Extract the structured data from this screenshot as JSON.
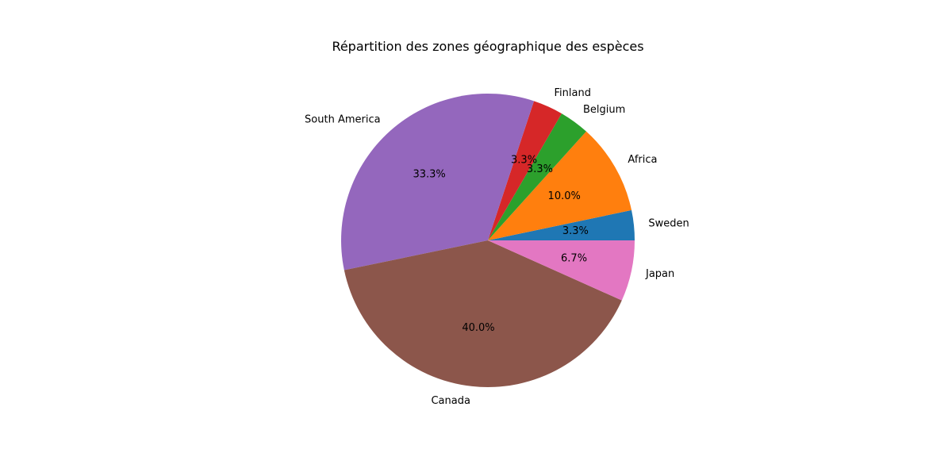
{
  "chart_data": {
    "type": "pie",
    "title": "Répartition des zones géographique des espèces",
    "start_angle_deg": 0,
    "direction": "counterclockwise",
    "slices": [
      {
        "label": "Sweden",
        "value": 3.3,
        "pct_label": "3.3%",
        "color": "#1f77b4"
      },
      {
        "label": "Africa",
        "value": 10.0,
        "pct_label": "10.0%",
        "color": "#ff7f0e"
      },
      {
        "label": "Belgium",
        "value": 3.3,
        "pct_label": "3.3%",
        "color": "#2ca02c"
      },
      {
        "label": "Finland",
        "value": 3.3,
        "pct_label": "3.3%",
        "color": "#d62728"
      },
      {
        "label": "South America",
        "value": 33.3,
        "pct_label": "33.3%",
        "color": "#9467bd"
      },
      {
        "label": "Canada",
        "value": 40.0,
        "pct_label": "40.0%",
        "color": "#8c564b"
      },
      {
        "label": "Japan",
        "value": 6.7,
        "pct_label": "6.7%",
        "color": "#e377c2"
      }
    ]
  }
}
